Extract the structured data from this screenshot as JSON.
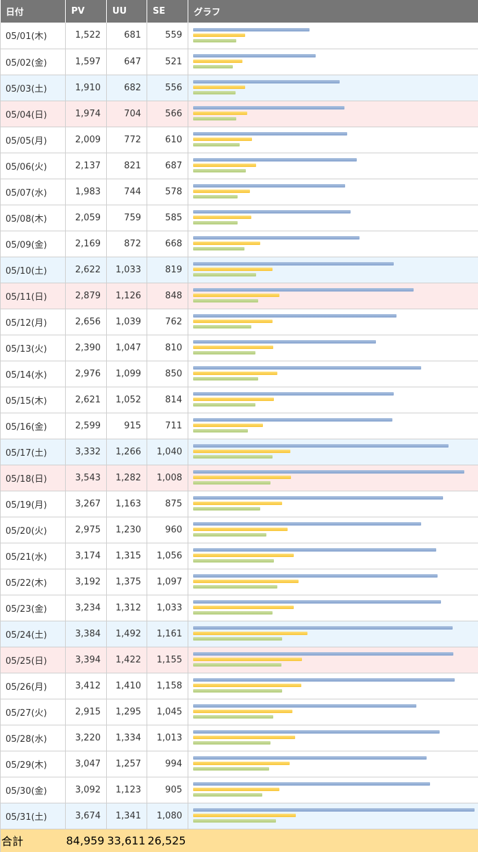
{
  "header": {
    "date": "日付",
    "pv": "PV",
    "uu": "UU",
    "se": "SE",
    "graph": "グラフ"
  },
  "graph_max_pv": 3674,
  "colors": {
    "header_bg": "#767676",
    "saturday_bg": "#eaf5fd",
    "sunday_bg": "#fdeaea",
    "total_bg": "#fedf97",
    "pv_bar": "#8aa8d2",
    "uu_bar": "#f8c53a",
    "se_bar": "#b7d082"
  },
  "rows": [
    {
      "date": "05/01(木)",
      "pv": "1,522",
      "uu": "681",
      "se": "559",
      "day": "weekday"
    },
    {
      "date": "05/02(金)",
      "pv": "1,597",
      "uu": "647",
      "se": "521",
      "day": "weekday"
    },
    {
      "date": "05/03(土)",
      "pv": "1,910",
      "uu": "682",
      "se": "556",
      "day": "sat"
    },
    {
      "date": "05/04(日)",
      "pv": "1,974",
      "uu": "704",
      "se": "566",
      "day": "sun"
    },
    {
      "date": "05/05(月)",
      "pv": "2,009",
      "uu": "772",
      "se": "610",
      "day": "weekday"
    },
    {
      "date": "05/06(火)",
      "pv": "2,137",
      "uu": "821",
      "se": "687",
      "day": "weekday"
    },
    {
      "date": "05/07(水)",
      "pv": "1,983",
      "uu": "744",
      "se": "578",
      "day": "weekday"
    },
    {
      "date": "05/08(木)",
      "pv": "2,059",
      "uu": "759",
      "se": "585",
      "day": "weekday"
    },
    {
      "date": "05/09(金)",
      "pv": "2,169",
      "uu": "872",
      "se": "668",
      "day": "weekday"
    },
    {
      "date": "05/10(土)",
      "pv": "2,622",
      "uu": "1,033",
      "se": "819",
      "day": "sat"
    },
    {
      "date": "05/11(日)",
      "pv": "2,879",
      "uu": "1,126",
      "se": "848",
      "day": "sun"
    },
    {
      "date": "05/12(月)",
      "pv": "2,656",
      "uu": "1,039",
      "se": "762",
      "day": "weekday"
    },
    {
      "date": "05/13(火)",
      "pv": "2,390",
      "uu": "1,047",
      "se": "810",
      "day": "weekday"
    },
    {
      "date": "05/14(水)",
      "pv": "2,976",
      "uu": "1,099",
      "se": "850",
      "day": "weekday"
    },
    {
      "date": "05/15(木)",
      "pv": "2,621",
      "uu": "1,052",
      "se": "814",
      "day": "weekday"
    },
    {
      "date": "05/16(金)",
      "pv": "2,599",
      "uu": "915",
      "se": "711",
      "day": "weekday"
    },
    {
      "date": "05/17(土)",
      "pv": "3,332",
      "uu": "1,266",
      "se": "1,040",
      "day": "sat"
    },
    {
      "date": "05/18(日)",
      "pv": "3,543",
      "uu": "1,282",
      "se": "1,008",
      "day": "sun"
    },
    {
      "date": "05/19(月)",
      "pv": "3,267",
      "uu": "1,163",
      "se": "875",
      "day": "weekday"
    },
    {
      "date": "05/20(火)",
      "pv": "2,975",
      "uu": "1,230",
      "se": "960",
      "day": "weekday"
    },
    {
      "date": "05/21(水)",
      "pv": "3,174",
      "uu": "1,315",
      "se": "1,056",
      "day": "weekday"
    },
    {
      "date": "05/22(木)",
      "pv": "3,192",
      "uu": "1,375",
      "se": "1,097",
      "day": "weekday"
    },
    {
      "date": "05/23(金)",
      "pv": "3,234",
      "uu": "1,312",
      "se": "1,033",
      "day": "weekday"
    },
    {
      "date": "05/24(土)",
      "pv": "3,384",
      "uu": "1,492",
      "se": "1,161",
      "day": "sat"
    },
    {
      "date": "05/25(日)",
      "pv": "3,394",
      "uu": "1,422",
      "se": "1,155",
      "day": "sun"
    },
    {
      "date": "05/26(月)",
      "pv": "3,412",
      "uu": "1,410",
      "se": "1,158",
      "day": "weekday"
    },
    {
      "date": "05/27(火)",
      "pv": "2,915",
      "uu": "1,295",
      "se": "1,045",
      "day": "weekday"
    },
    {
      "date": "05/28(水)",
      "pv": "3,220",
      "uu": "1,334",
      "se": "1,013",
      "day": "weekday"
    },
    {
      "date": "05/29(木)",
      "pv": "3,047",
      "uu": "1,257",
      "se": "994",
      "day": "weekday"
    },
    {
      "date": "05/30(金)",
      "pv": "3,092",
      "uu": "1,123",
      "se": "905",
      "day": "weekday"
    },
    {
      "date": "05/31(土)",
      "pv": "3,674",
      "uu": "1,341",
      "se": "1,080",
      "day": "sat"
    }
  ],
  "total": {
    "label": "合計",
    "pv": "84,959",
    "uu": "33,611",
    "se": "26,525"
  }
}
